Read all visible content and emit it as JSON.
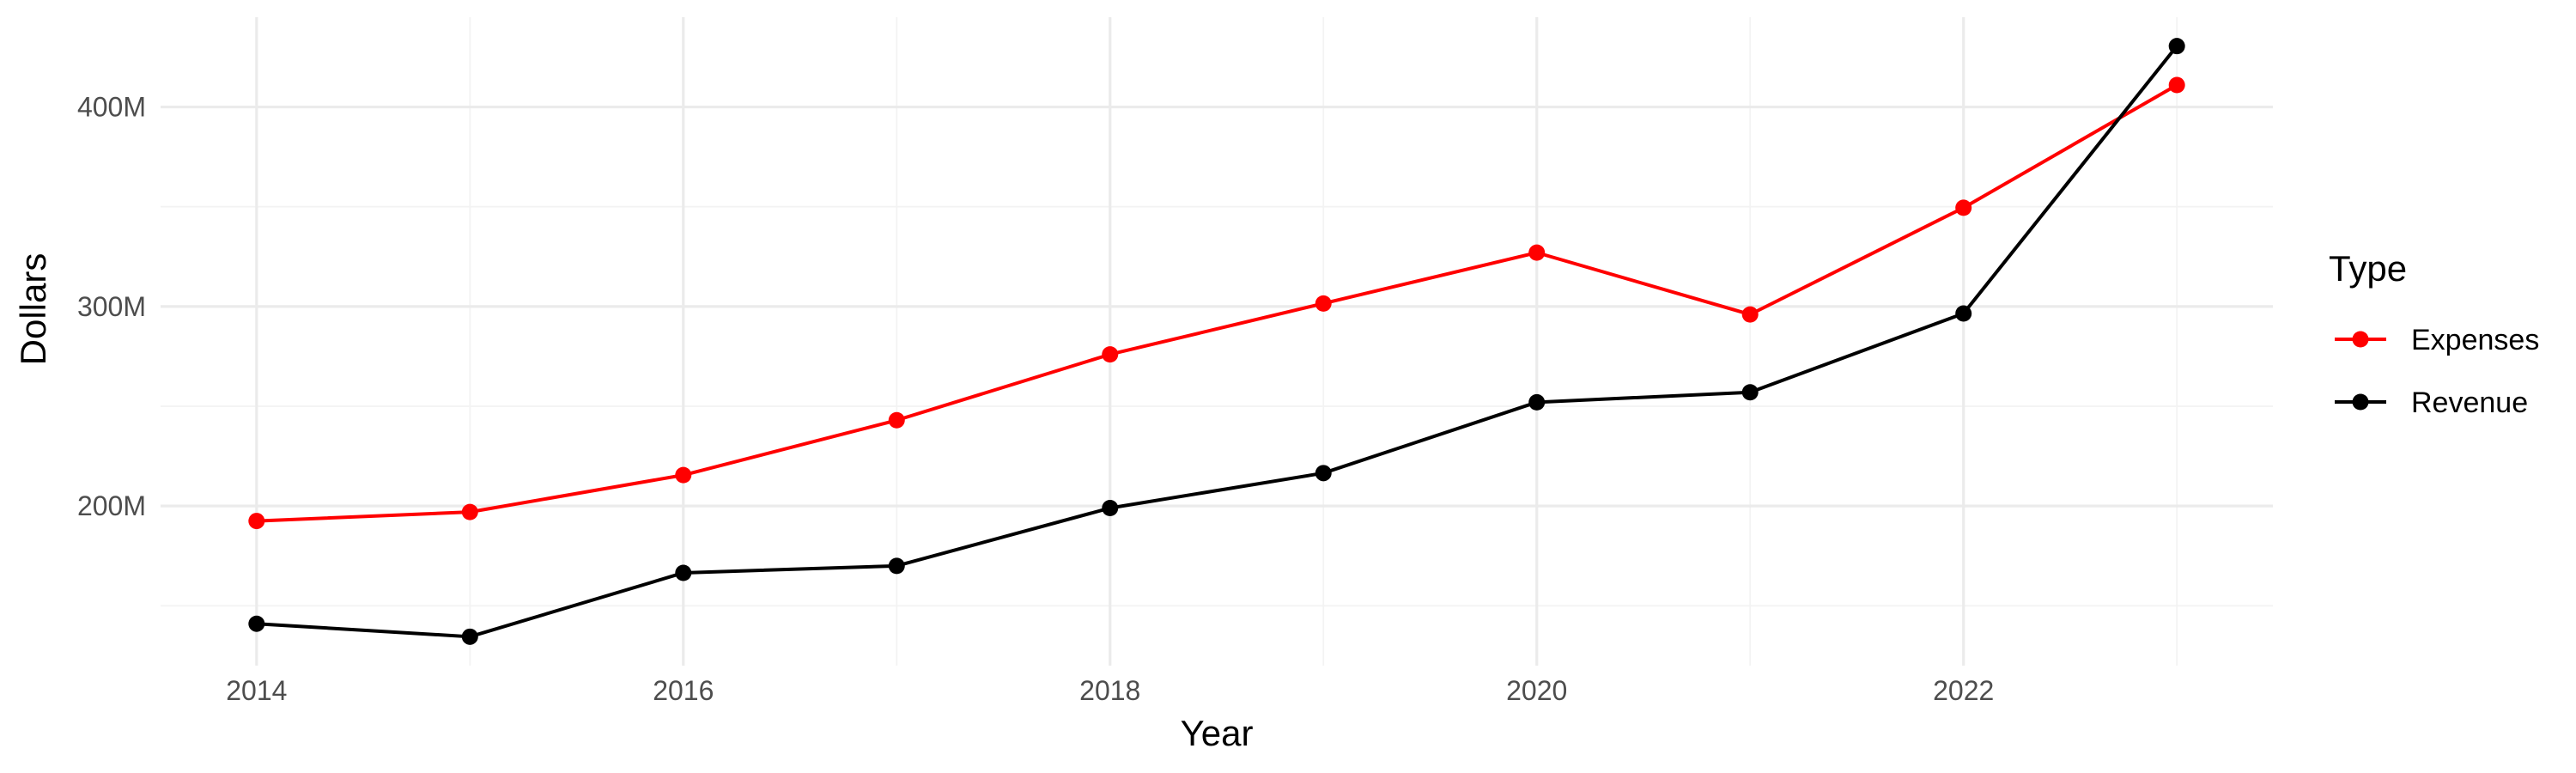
{
  "chart_data": {
    "type": "line",
    "title": "",
    "xlabel": "Year",
    "ylabel": "Dollars",
    "x": [
      2014,
      2015,
      2016,
      2017,
      2018,
      2019,
      2020,
      2021,
      2022,
      2023
    ],
    "x_ticks": [
      2014,
      2016,
      2018,
      2020,
      2022
    ],
    "x_tick_labels": [
      "2014",
      "2016",
      "2018",
      "2020",
      "2022"
    ],
    "xlim": [
      2013.55,
      2023.45
    ],
    "y_ticks": [
      200000000,
      300000000,
      400000000
    ],
    "y_tick_labels": [
      "200M",
      "300M",
      "400M"
    ],
    "ylim": [
      120000000,
      445000000
    ],
    "grid": true,
    "legend": {
      "title": "Type",
      "position": "right",
      "entries": [
        "Expenses",
        "Revenue"
      ]
    },
    "series": [
      {
        "name": "Expenses",
        "color": "#ff0000",
        "values": [
          192500000,
          197000000,
          215500000,
          243000000,
          276000000,
          301500000,
          327000000,
          296000000,
          349500000,
          411000000
        ]
      },
      {
        "name": "Revenue",
        "color": "#000000",
        "values": [
          141000000,
          134500000,
          166500000,
          170000000,
          199000000,
          216500000,
          252000000,
          257000000,
          296500000,
          430500000
        ]
      }
    ]
  }
}
